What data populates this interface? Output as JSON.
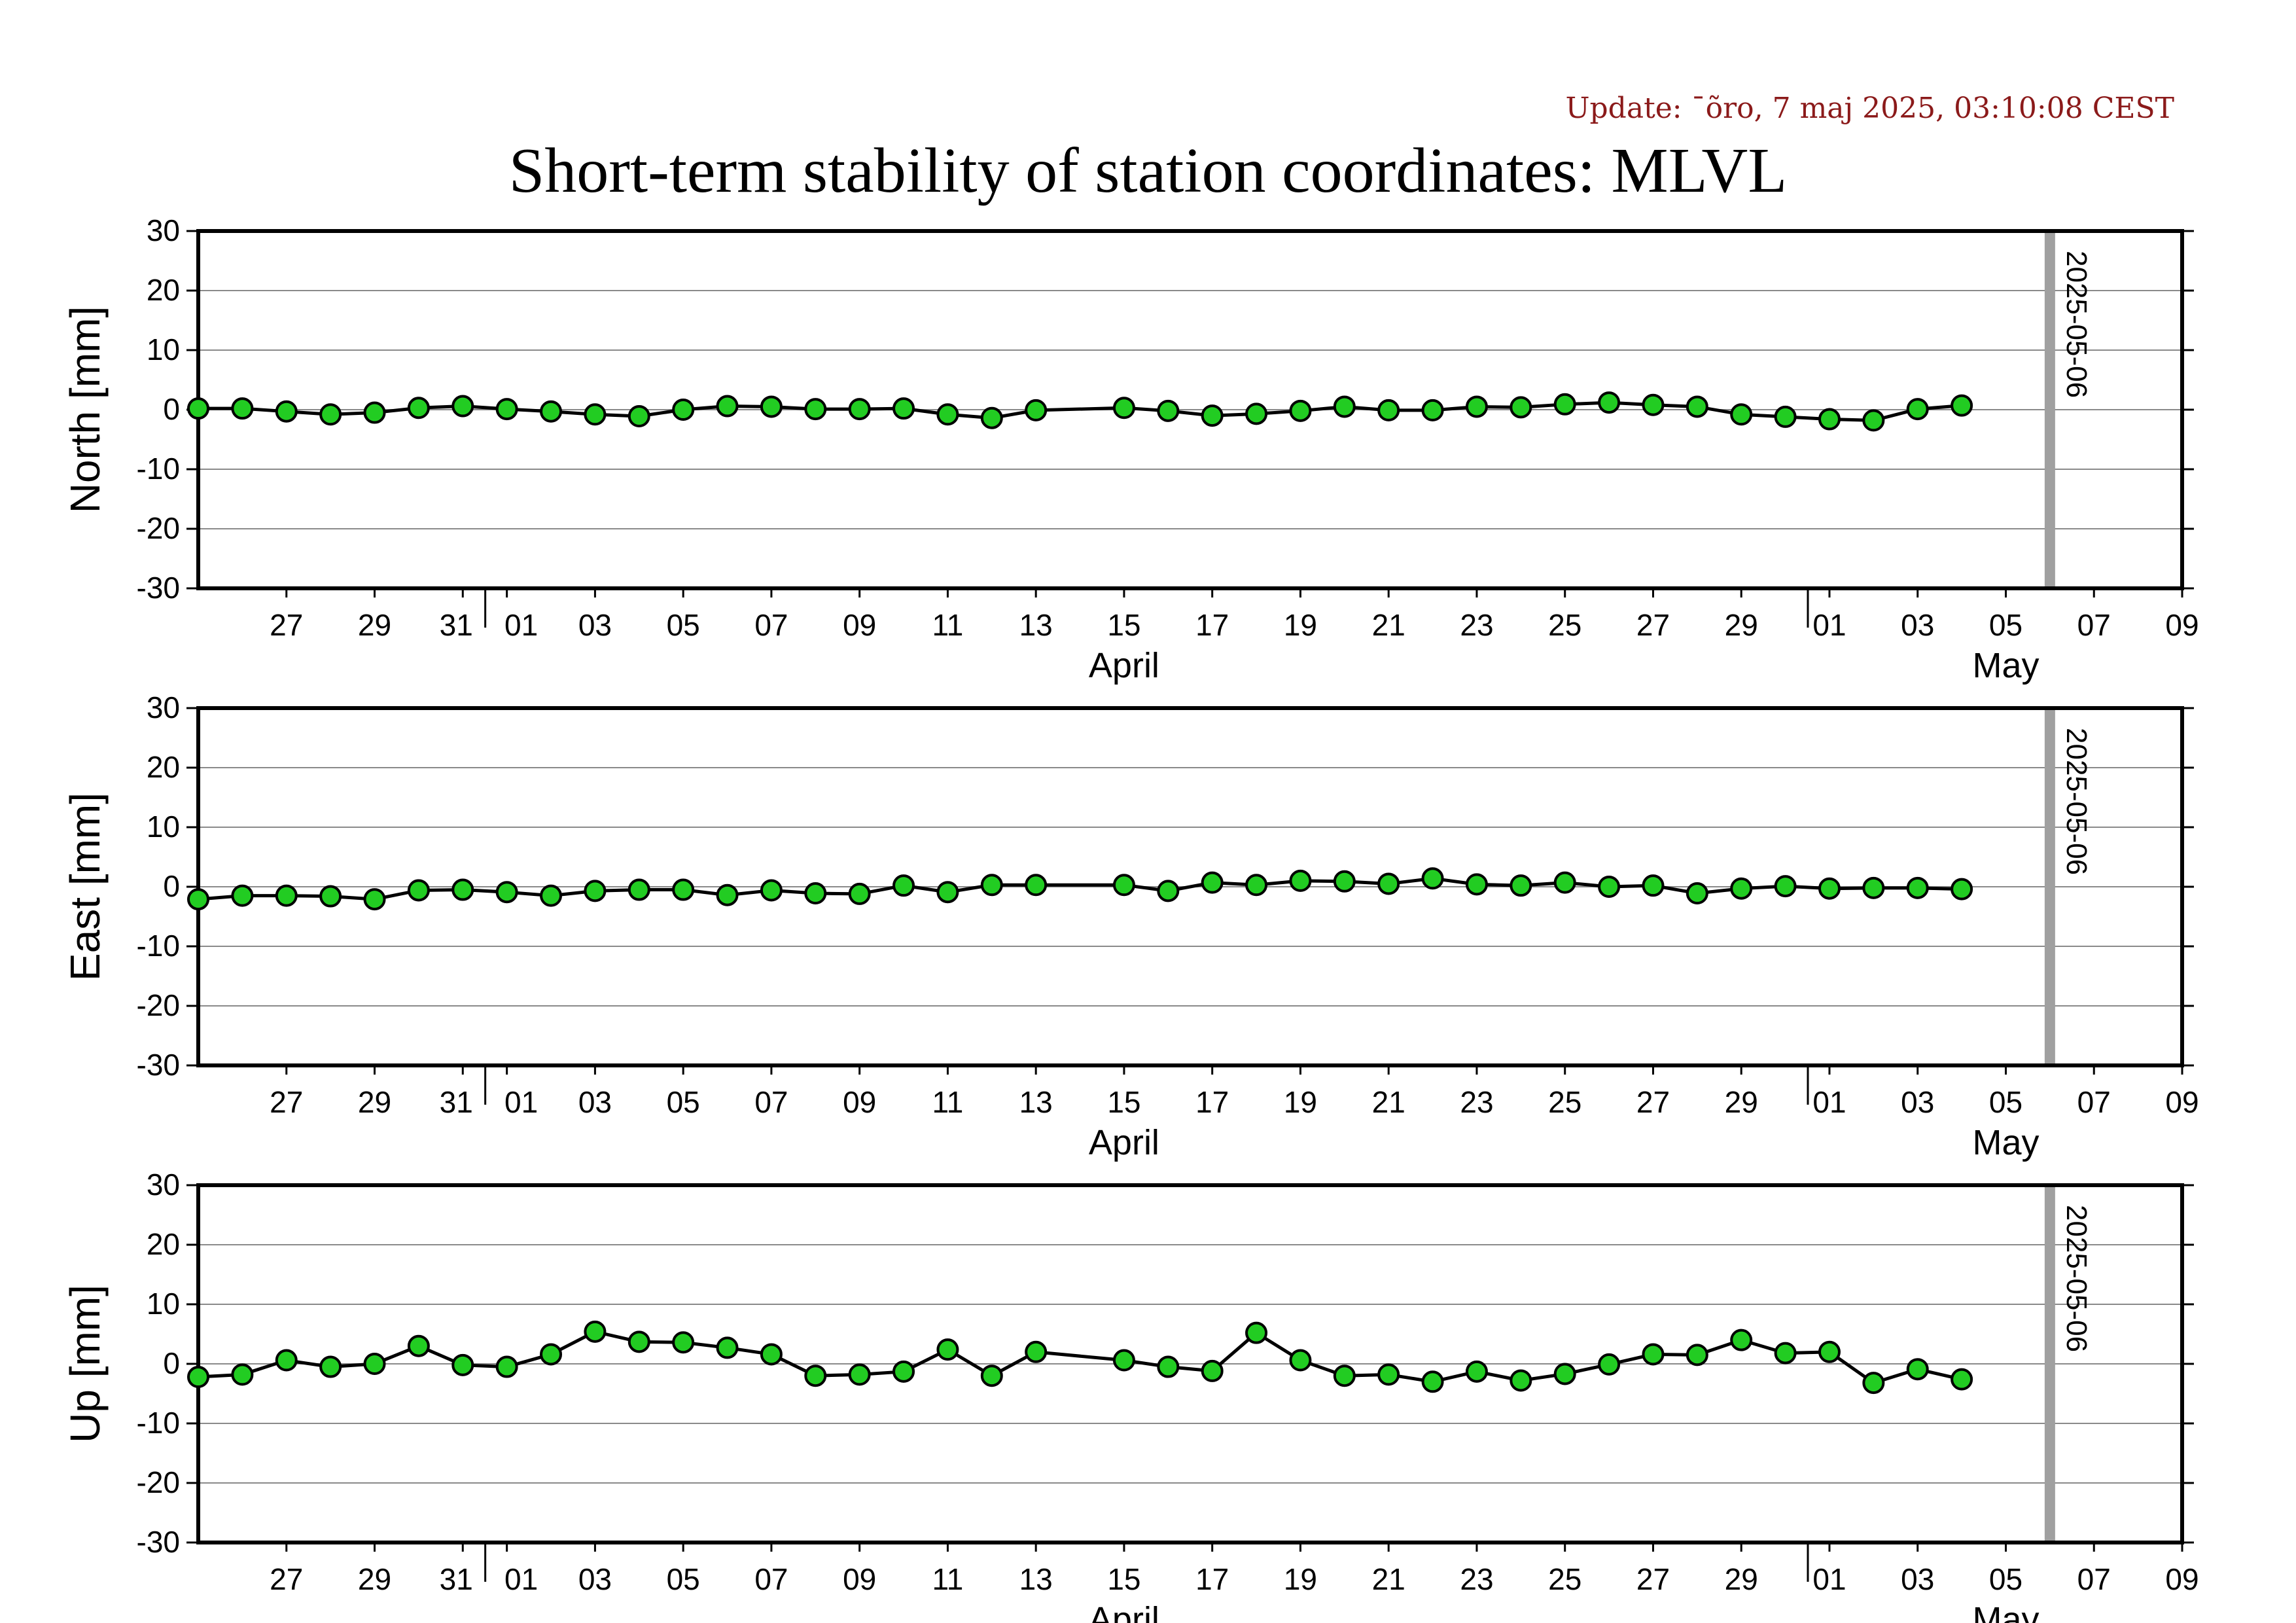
{
  "update_text": "Update: ¯õro, 7 maj 2025, 03:10:08 CEST",
  "title": "Short-term stability of station coordinates: MLVL",
  "chart_data": {
    "type": "line",
    "x_range": [
      "2025-03-25",
      "2025-05-09"
    ],
    "reference_date": "2025-05-06",
    "reference_line_color": "#a0a0a0",
    "marker_fill_color": "#22cc22",
    "ylim": [
      -30,
      30
    ],
    "y_ticks": [
      30,
      20,
      10,
      0,
      -10,
      -20,
      -30
    ],
    "x_tick_labels": [
      "27",
      "29",
      "31",
      "01",
      "03",
      "05",
      "07",
      "09",
      "11",
      "13",
      "15",
      "17",
      "19",
      "21",
      "23",
      "25",
      "27",
      "29",
      "01",
      "03",
      "05",
      "07",
      "09"
    ],
    "month_labels": [
      "April",
      "May"
    ],
    "grid": "horizontal",
    "panels": [
      {
        "ylabel": "North [mm]",
        "points": [
          [
            "2025-03-25",
            0.2
          ],
          [
            "2025-03-26",
            0.2
          ],
          [
            "2025-03-27",
            -0.3
          ],
          [
            "2025-03-28",
            -0.8
          ],
          [
            "2025-03-29",
            -0.5
          ],
          [
            "2025-03-30",
            0.3
          ],
          [
            "2025-03-31",
            0.6
          ],
          [
            "2025-04-01",
            0.1
          ],
          [
            "2025-04-02",
            -0.3
          ],
          [
            "2025-04-03",
            -0.8
          ],
          [
            "2025-04-04",
            -1.1
          ],
          [
            "2025-04-05",
            0.0
          ],
          [
            "2025-04-06",
            0.6
          ],
          [
            "2025-04-07",
            0.5
          ],
          [
            "2025-04-08",
            0.1
          ],
          [
            "2025-04-09",
            0.1
          ],
          [
            "2025-04-10",
            0.2
          ],
          [
            "2025-04-11",
            -0.8
          ],
          [
            "2025-04-12",
            -1.4
          ],
          [
            "2025-04-13",
            -0.1
          ],
          [
            "2025-04-15",
            0.3
          ],
          [
            "2025-04-16",
            -0.2
          ],
          [
            "2025-04-17",
            -1.0
          ],
          [
            "2025-04-18",
            -0.7
          ],
          [
            "2025-04-19",
            -0.2
          ],
          [
            "2025-04-20",
            0.5
          ],
          [
            "2025-04-21",
            -0.1
          ],
          [
            "2025-04-22",
            -0.1
          ],
          [
            "2025-04-23",
            0.5
          ],
          [
            "2025-04-24",
            0.4
          ],
          [
            "2025-04-25",
            0.9
          ],
          [
            "2025-04-26",
            1.2
          ],
          [
            "2025-04-27",
            0.8
          ],
          [
            "2025-04-28",
            0.5
          ],
          [
            "2025-04-29",
            -0.8
          ],
          [
            "2025-04-30",
            -1.2
          ],
          [
            "2025-05-01",
            -1.6
          ],
          [
            "2025-05-02",
            -1.8
          ],
          [
            "2025-05-03",
            0.1
          ],
          [
            "2025-05-04",
            0.7
          ]
        ]
      },
      {
        "ylabel": "East [mm]",
        "points": [
          [
            "2025-03-25",
            -2.1
          ],
          [
            "2025-03-26",
            -1.5
          ],
          [
            "2025-03-27",
            -1.5
          ],
          [
            "2025-03-28",
            -1.6
          ],
          [
            "2025-03-29",
            -2.1
          ],
          [
            "2025-03-30",
            -0.6
          ],
          [
            "2025-03-31",
            -0.5
          ],
          [
            "2025-04-01",
            -0.9
          ],
          [
            "2025-04-02",
            -1.5
          ],
          [
            "2025-04-03",
            -0.7
          ],
          [
            "2025-04-04",
            -0.5
          ],
          [
            "2025-04-05",
            -0.5
          ],
          [
            "2025-04-06",
            -1.4
          ],
          [
            "2025-04-07",
            -0.6
          ],
          [
            "2025-04-08",
            -1.1
          ],
          [
            "2025-04-09",
            -1.2
          ],
          [
            "2025-04-10",
            0.2
          ],
          [
            "2025-04-11",
            -0.9
          ],
          [
            "2025-04-12",
            0.3
          ],
          [
            "2025-04-13",
            0.3
          ],
          [
            "2025-04-15",
            0.3
          ],
          [
            "2025-04-16",
            -0.7
          ],
          [
            "2025-04-17",
            0.7
          ],
          [
            "2025-04-18",
            0.3
          ],
          [
            "2025-04-19",
            1.0
          ],
          [
            "2025-04-20",
            0.9
          ],
          [
            "2025-04-21",
            0.5
          ],
          [
            "2025-04-22",
            1.4
          ],
          [
            "2025-04-23",
            0.4
          ],
          [
            "2025-04-24",
            0.2
          ],
          [
            "2025-04-25",
            0.7
          ],
          [
            "2025-04-26",
            0.0
          ],
          [
            "2025-04-27",
            0.2
          ],
          [
            "2025-04-28",
            -1.1
          ],
          [
            "2025-04-29",
            -0.3
          ],
          [
            "2025-04-30",
            0.1
          ],
          [
            "2025-05-01",
            -0.3
          ],
          [
            "2025-05-02",
            -0.2
          ],
          [
            "2025-05-03",
            -0.2
          ],
          [
            "2025-05-04",
            -0.4
          ]
        ]
      },
      {
        "ylabel": "Up [mm]",
        "points": [
          [
            "2025-03-25",
            -2.2
          ],
          [
            "2025-03-26",
            -1.8
          ],
          [
            "2025-03-27",
            0.6
          ],
          [
            "2025-03-28",
            -0.5
          ],
          [
            "2025-03-29",
            0.0
          ],
          [
            "2025-03-30",
            3.0
          ],
          [
            "2025-03-31",
            -0.2
          ],
          [
            "2025-04-01",
            -0.5
          ],
          [
            "2025-04-02",
            1.6
          ],
          [
            "2025-04-03",
            5.4
          ],
          [
            "2025-04-04",
            3.7
          ],
          [
            "2025-04-05",
            3.6
          ],
          [
            "2025-04-06",
            2.7
          ],
          [
            "2025-04-07",
            1.6
          ],
          [
            "2025-04-08",
            -2.0
          ],
          [
            "2025-04-09",
            -1.8
          ],
          [
            "2025-04-10",
            -1.3
          ],
          [
            "2025-04-11",
            2.4
          ],
          [
            "2025-04-12",
            -2.0
          ],
          [
            "2025-04-13",
            2.0
          ],
          [
            "2025-04-15",
            0.6
          ],
          [
            "2025-04-16",
            -0.5
          ],
          [
            "2025-04-17",
            -1.2
          ],
          [
            "2025-04-18",
            5.2
          ],
          [
            "2025-04-19",
            0.6
          ],
          [
            "2025-04-20",
            -2.0
          ],
          [
            "2025-04-21",
            -1.8
          ],
          [
            "2025-04-22",
            -3.0
          ],
          [
            "2025-04-23",
            -1.3
          ],
          [
            "2025-04-24",
            -2.8
          ],
          [
            "2025-04-25",
            -1.7
          ],
          [
            "2025-04-26",
            -0.1
          ],
          [
            "2025-04-27",
            1.6
          ],
          [
            "2025-04-28",
            1.5
          ],
          [
            "2025-04-29",
            4.0
          ],
          [
            "2025-04-30",
            1.8
          ],
          [
            "2025-05-01",
            2.0
          ],
          [
            "2025-05-02",
            -3.2
          ],
          [
            "2025-05-03",
            -0.9
          ],
          [
            "2025-05-04",
            -2.6
          ]
        ]
      }
    ]
  }
}
